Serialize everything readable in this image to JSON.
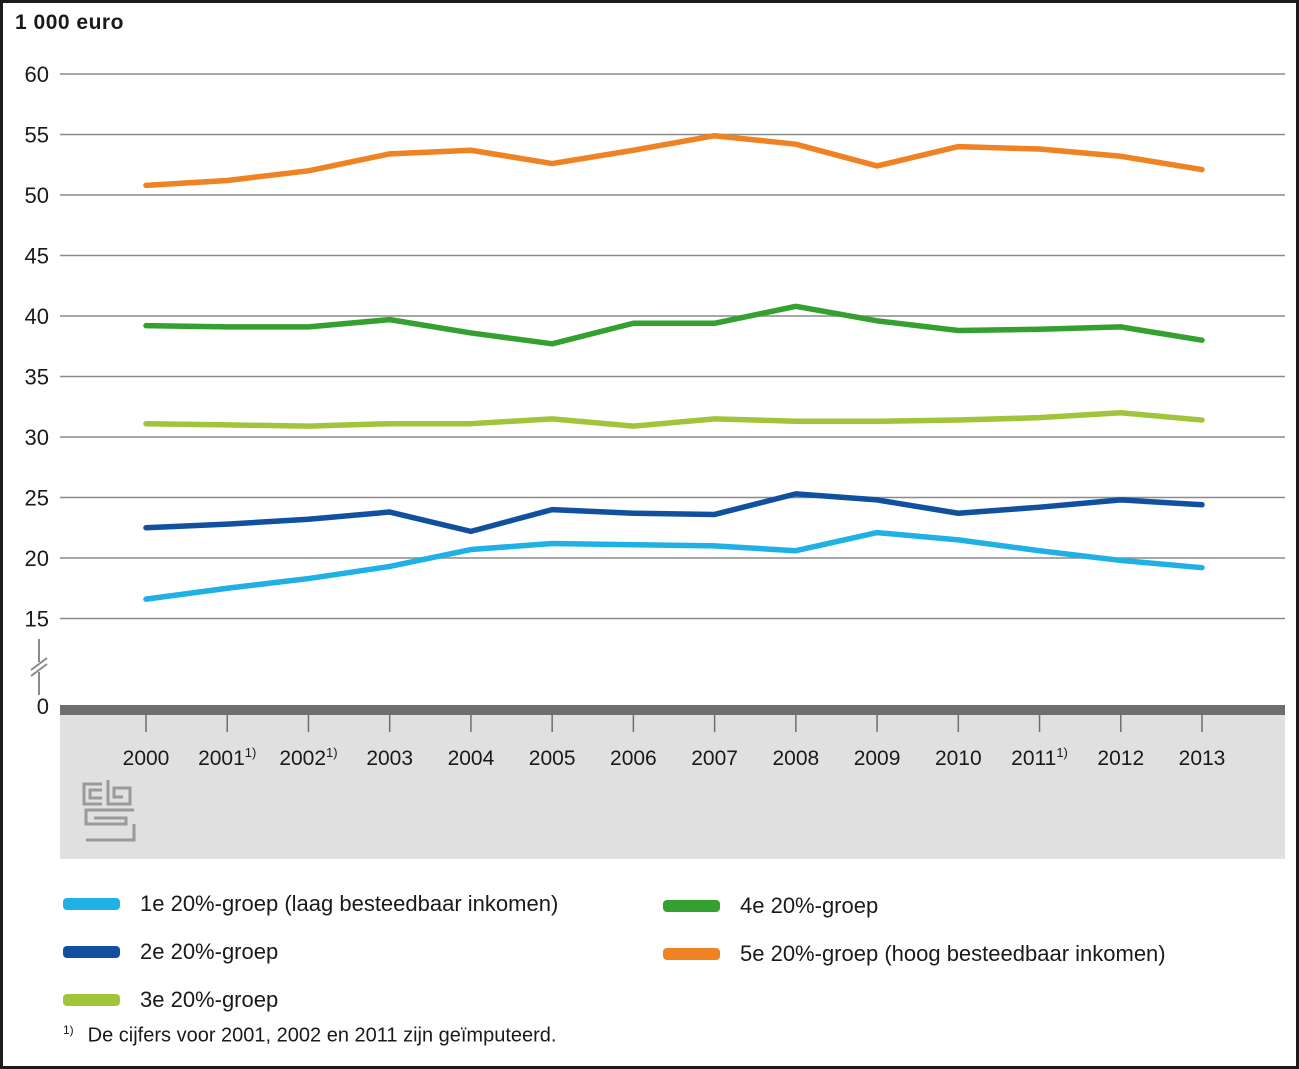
{
  "title": "1 000 euro",
  "chart_data": {
    "type": "line",
    "title": "1 000 euro",
    "ylabel": "1 000 euro",
    "xlabel": "",
    "x_categories": [
      "2000",
      "2001",
      "2002",
      "2003",
      "2004",
      "2005",
      "2006",
      "2007",
      "2008",
      "2009",
      "2010",
      "2011",
      "2012",
      "2013"
    ],
    "footnote_marker": "1)",
    "footnote_years": [
      "2001",
      "2002",
      "2011"
    ],
    "y_ticks": [
      0,
      15,
      20,
      25,
      30,
      35,
      40,
      45,
      50,
      55,
      60
    ],
    "ylim": [
      0,
      60
    ],
    "axis_break": true,
    "grid": true,
    "legend_position": "bottom",
    "series": [
      {
        "name": "1e 20%-groep (laag besteedbaar inkomen)",
        "color": "#1fb1e5",
        "values": [
          16.6,
          17.5,
          18.3,
          19.3,
          20.7,
          21.2,
          21.1,
          21.0,
          20.6,
          22.1,
          21.5,
          20.6,
          19.8,
          19.2
        ]
      },
      {
        "name": "2e 20%-groep",
        "color": "#10509f",
        "values": [
          22.5,
          22.8,
          23.2,
          23.8,
          22.2,
          24.0,
          23.7,
          23.6,
          25.3,
          24.8,
          23.7,
          24.2,
          24.8,
          24.4
        ]
      },
      {
        "name": "3e 20%-groep",
        "color": "#a1c53a",
        "values": [
          31.1,
          31.0,
          30.9,
          31.1,
          31.1,
          31.5,
          30.9,
          31.5,
          31.3,
          31.3,
          31.4,
          31.6,
          32.0,
          31.4
        ]
      },
      {
        "name": "4e 20%-groep",
        "color": "#33a02f",
        "values": [
          39.2,
          39.1,
          39.1,
          39.7,
          38.6,
          37.7,
          39.4,
          39.4,
          40.8,
          39.6,
          38.8,
          38.9,
          39.1,
          38.0
        ]
      },
      {
        "name": "5e 20%-groep (hoog besteedbaar inkomen)",
        "color": "#ef8222",
        "values": [
          50.8,
          51.2,
          52.0,
          53.4,
          53.7,
          52.6,
          53.7,
          54.9,
          54.2,
          52.4,
          54.0,
          53.8,
          53.2,
          52.1
        ]
      }
    ]
  },
  "footnote": {
    "marker": "1)",
    "text": "De cijfers voor 2001, 2002 en 2011 zijn geïmputeerd."
  },
  "branding": {
    "logo_name": "cbs-logo"
  },
  "colors": {
    "gridline": "#8a8a8a",
    "zero_axis_bar": "#6e6e6e",
    "x_band_background": "#e0e0e0",
    "tick": "#6e6e6e",
    "text": "#1a1a1a",
    "logo_gray": "#9a9a9a",
    "frame_border": "#1c1c1c"
  }
}
